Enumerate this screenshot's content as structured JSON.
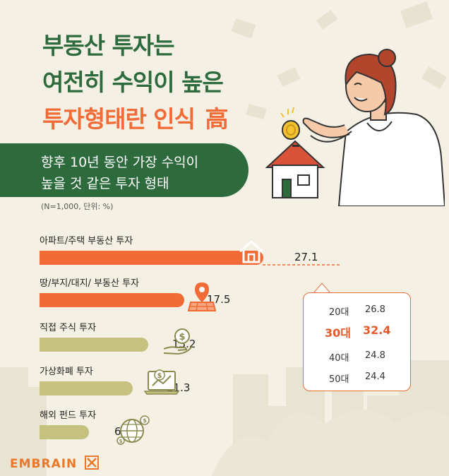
{
  "header": {
    "title_line1": "부동산 투자는",
    "title_line2": "여전히 수익이 높은",
    "title_line3_main": "투자형태란 인식",
    "title_line3_suffix": "高"
  },
  "subtitle": {
    "line1": "향후 10년 동안 가장 수익이",
    "line2": "높을 것 같은 투자 형태"
  },
  "note": "(N=1,000, 단위: %)",
  "brand": {
    "logo_text": "EMBRAIN"
  },
  "colors": {
    "title_green": "#2e6b3c",
    "accent_orange": "#f26a35",
    "olive": "#c4c27e",
    "background": "#f4f0e4"
  },
  "icons": [
    "house-icon",
    "location-pin-icon",
    "coin-hand-icon",
    "laptop-chart-icon",
    "globe-coins-icon"
  ],
  "chart_data": {
    "type": "bar",
    "orientation": "horizontal",
    "categories": [
      "아파트/주택 부동산 투자",
      "땅/부지/대지/ 부동산 투자",
      "직접 주식 투자",
      "가상화폐 투자",
      "해외 펀드 투자"
    ],
    "values": [
      27.1,
      17.5,
      13.2,
      11.3,
      6.0
    ],
    "value_labels": [
      "27.1",
      "17.5",
      "13.2",
      "11.3",
      "6.0"
    ],
    "highlight": [
      true,
      true,
      false,
      false,
      false
    ],
    "grid": false,
    "age_breakdown": {
      "category": "아파트/주택 부동산 투자",
      "rows": [
        {
          "age": "20대",
          "value": "26.8",
          "highlight": false
        },
        {
          "age": "30대",
          "value": "32.4",
          "highlight": true
        },
        {
          "age": "40대",
          "value": "24.8",
          "highlight": false
        },
        {
          "age": "50대",
          "value": "24.4",
          "highlight": false
        }
      ]
    }
  }
}
